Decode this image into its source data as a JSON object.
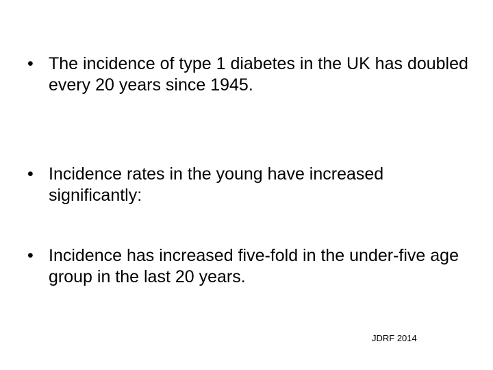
{
  "bullets": [
    "The incidence of type 1 diabetes in the UK has doubled every 20 years since 1945.",
    "Incidence rates in the young have increased significantly:",
    "Incidence has increased five-fold in the under-five age group in the last 20 years."
  ],
  "source": "JDRF 2014"
}
